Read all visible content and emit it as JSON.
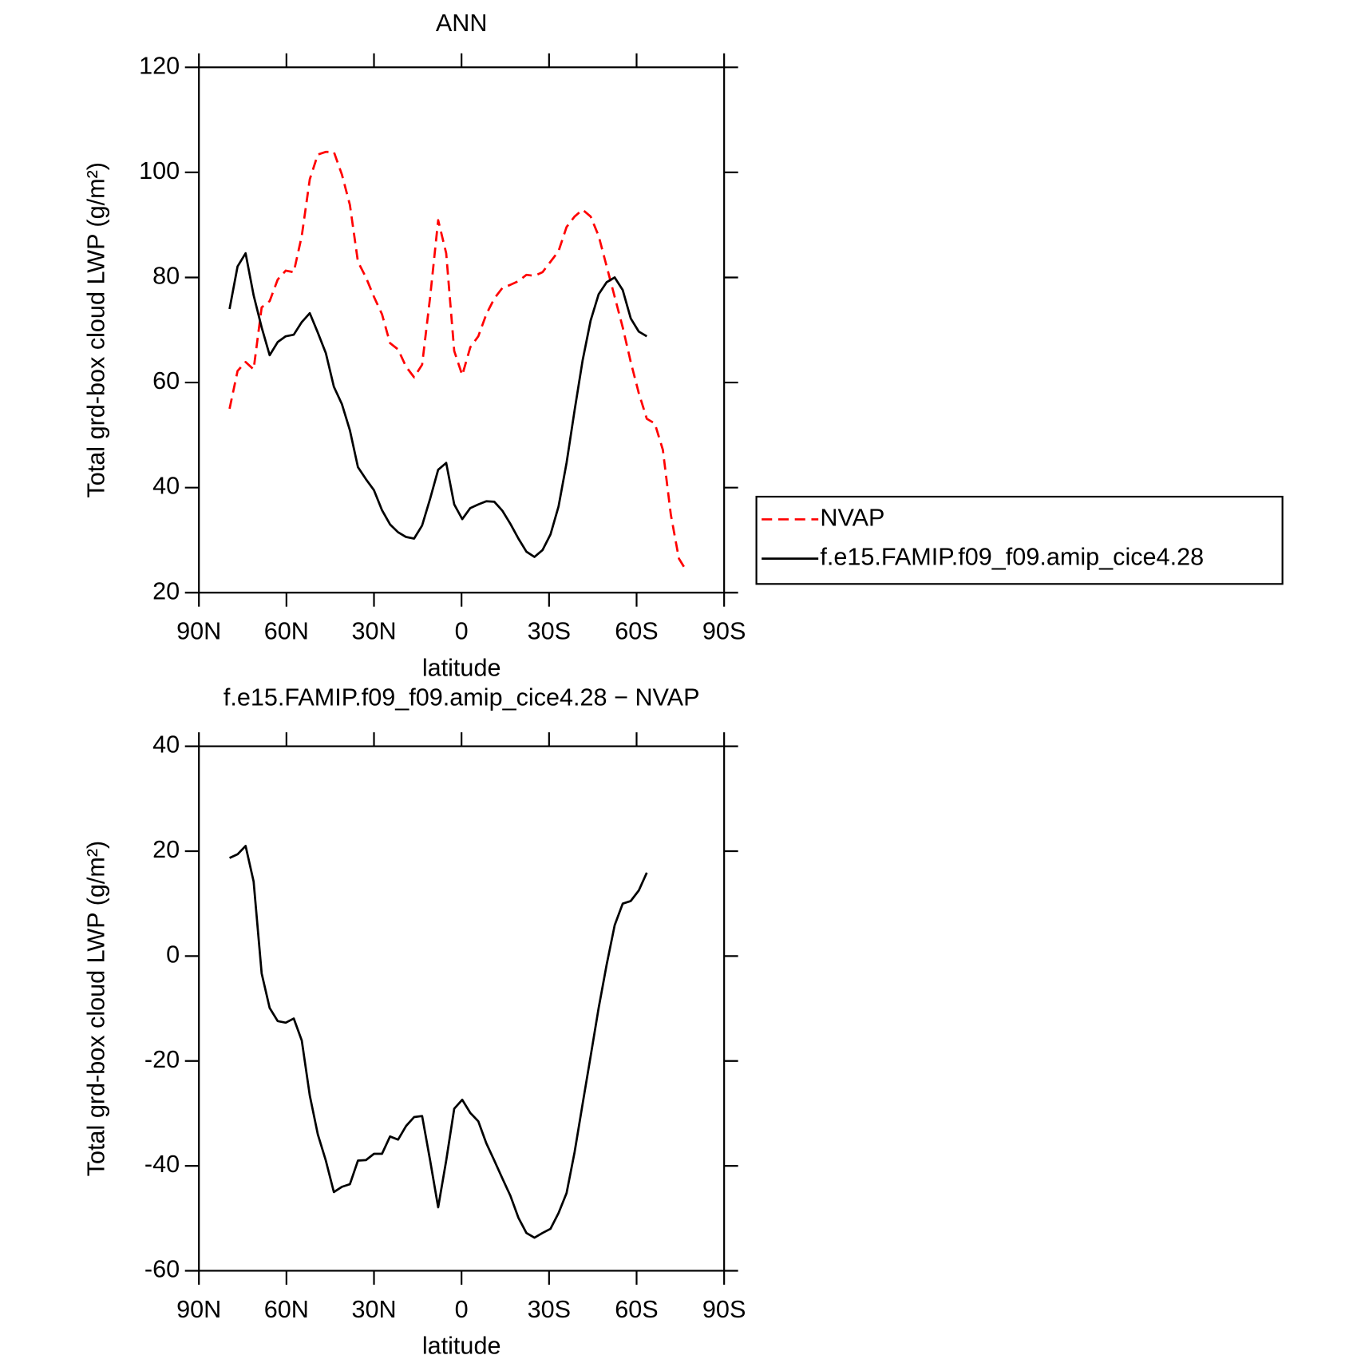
{
  "chart_data": [
    {
      "type": "line",
      "title": "ANN",
      "xlabel": "latitude",
      "ylabel": "Total grd-box cloud LWP (g/m²)",
      "x": [
        79.5,
        76.75,
        74,
        71.25,
        68.5,
        65.75,
        63,
        60.25,
        57.5,
        54.75,
        52,
        49.25,
        46.5,
        43.75,
        41,
        38.25,
        35.5,
        32.75,
        30,
        27.25,
        24.5,
        21.75,
        19,
        16.25,
        13.5,
        10.75,
        8,
        5.25,
        2.5,
        -0.25,
        -3,
        -5.75,
        -8.5,
        -11.25,
        -14,
        -16.75,
        -19.5,
        -22.25,
        -25,
        -27.75,
        -30.5,
        -33.25,
        -36,
        -38.75,
        -41.5,
        -44.25,
        -47,
        -49.75,
        -52.5,
        -55.25,
        -58,
        -60.75,
        -63.5,
        -66.25,
        -69,
        -71.75,
        -74.5,
        -77.25
      ],
      "series": [
        {
          "name": "NVAP",
          "color": "#ff0000",
          "style": "dashed",
          "values": [
            55.0,
            62.2,
            63.9,
            62.5,
            74.3,
            75.5,
            79.6,
            81.3,
            81.0,
            87.9,
            98.7,
            103.4,
            103.9,
            103.9,
            99.6,
            93.8,
            83.0,
            80.0,
            76.3,
            73.0,
            67.5,
            66.3,
            63.0,
            61.0,
            63.4,
            76.3,
            90.9,
            84.6,
            66.0,
            61.4,
            66.7,
            68.8,
            73.0,
            76.0,
            78.0,
            78.6,
            79.3,
            80.5,
            80.3,
            81.0,
            83.0,
            85.0,
            89.6,
            91.6,
            92.9,
            91.6,
            87.9,
            82.1,
            76.3,
            70.5,
            63.9,
            58.0,
            53.1,
            52.2,
            47.2,
            34.8,
            26.5,
            24.0
          ]
        },
        {
          "name": "f.e15.FAMIP.f09_f09.amip_cice4.28",
          "color": "#000000",
          "style": "solid",
          "values": [
            74.0,
            82.1,
            84.6,
            76.6,
            70.5,
            65.2,
            67.7,
            68.8,
            69.1,
            71.5,
            73.2,
            69.5,
            65.6,
            59.2,
            55.9,
            50.9,
            43.9,
            41.6,
            39.5,
            35.7,
            33.0,
            31.5,
            30.6,
            30.3,
            32.8,
            37.9,
            43.4,
            44.7,
            36.8,
            34.0,
            36.1,
            36.8,
            37.4,
            37.3,
            35.6,
            33.1,
            30.3,
            27.8,
            26.8,
            28.1,
            31.1,
            36.4,
            44.7,
            54.7,
            64.2,
            71.8,
            76.8,
            79.1,
            80.0,
            77.6,
            72.2,
            69.7,
            68.8,
            null,
            null,
            null,
            null,
            null
          ]
        }
      ],
      "xlim": [
        90,
        -90
      ],
      "xticks": [
        {
          "value": 90,
          "label": "90N"
        },
        {
          "value": 60,
          "label": "60N"
        },
        {
          "value": 30,
          "label": "30N"
        },
        0,
        {
          "value": -30,
          "label": "30S"
        },
        {
          "value": -60,
          "label": "60S"
        },
        {
          "value": -90,
          "label": "90S"
        }
      ],
      "ylim": [
        20,
        120
      ],
      "yticks": [
        20,
        40,
        60,
        80,
        100,
        120
      ],
      "legend": "right"
    },
    {
      "type": "line",
      "title": "f.e15.FAMIP.f09_f09.amip_cice4.28 − NVAP",
      "xlabel": "latitude",
      "ylabel": "Total grd-box cloud LWP (g/m²)",
      "x": [
        79.5,
        76.75,
        74,
        71.25,
        68.5,
        65.75,
        63,
        60.25,
        57.5,
        54.75,
        52,
        49.25,
        46.5,
        43.75,
        41,
        38.25,
        35.5,
        32.75,
        30,
        27.25,
        24.5,
        21.75,
        19,
        16.25,
        13.5,
        10.75,
        8,
        5.25,
        2.5,
        -0.25,
        -3,
        -5.75,
        -8.5,
        -11.25,
        -14,
        -16.75,
        -19.5,
        -22.25,
        -25,
        -27.75,
        -30.5,
        -33.25,
        -36,
        -38.75,
        -41.5,
        -44.25,
        -47,
        -49.75,
        -52.5,
        -55.25,
        -58,
        -60.75,
        -63.5
      ],
      "series": [
        {
          "color": "#000000",
          "style": "solid",
          "values": [
            18.7,
            19.4,
            21.0,
            14.2,
            -3.3,
            -9.9,
            -12.4,
            -12.7,
            -11.9,
            -16.1,
            -26.6,
            -34.0,
            -39.0,
            -45.0,
            -44.0,
            -43.5,
            -39.0,
            -38.9,
            -37.7,
            -37.7,
            -34.4,
            -35.0,
            -32.4,
            -30.7,
            -30.5,
            -39.0,
            -47.9,
            -39.0,
            -29.1,
            -27.4,
            -29.9,
            -31.5,
            -35.7,
            -39.0,
            -42.4,
            -45.7,
            -49.9,
            -52.8,
            -53.7,
            -52.8,
            -52.0,
            -49.0,
            -45.2,
            -37.4,
            -28.2,
            -19.1,
            -9.9,
            -1.6,
            5.9,
            10.0,
            10.5,
            12.5,
            15.9
          ]
        }
      ],
      "xlim": [
        90,
        -90
      ],
      "xticks": [
        {
          "value": 90,
          "label": "90N"
        },
        {
          "value": 60,
          "label": "60N"
        },
        {
          "value": 30,
          "label": "30N"
        },
        0,
        {
          "value": -30,
          "label": "30S"
        },
        {
          "value": -60,
          "label": "60S"
        },
        {
          "value": -90,
          "label": "90S"
        }
      ],
      "ylim": [
        -60,
        40
      ],
      "yticks": [
        -60,
        -40,
        -20,
        0,
        20,
        40
      ]
    }
  ]
}
